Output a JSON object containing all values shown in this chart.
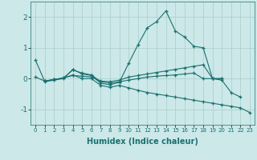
{
  "xlabel": "Humidex (Indice chaleur)",
  "background_color": "#cce8e8",
  "grid_color": "#aacccc",
  "line_color": "#1a7070",
  "xlim": [
    -0.5,
    23.5
  ],
  "ylim": [
    -1.5,
    2.5
  ],
  "yticks": [
    -1,
    0,
    1,
    2
  ],
  "xtick_labels": [
    "0",
    "1",
    "2",
    "3",
    "4",
    "5",
    "6",
    "7",
    "8",
    "9",
    "10",
    "11",
    "12",
    "13",
    "14",
    "15",
    "16",
    "17",
    "18",
    "19",
    "20",
    "21",
    "22",
    "23"
  ],
  "series": [
    {
      "x": [
        0,
        1,
        2,
        3,
        4,
        5,
        6,
        7,
        8,
        9,
        10,
        11,
        12,
        13,
        14,
        15,
        16,
        17,
        18,
        19,
        20,
        21,
        22
      ],
      "y": [
        0.6,
        -0.1,
        -0.05,
        0.0,
        0.3,
        0.15,
        0.1,
        -0.15,
        -0.2,
        -0.12,
        0.5,
        1.1,
        1.65,
        1.85,
        2.2,
        1.55,
        1.35,
        1.05,
        1.0,
        0.0,
        -0.05,
        -0.45,
        -0.6
      ]
    },
    {
      "x": [
        0,
        1,
        2,
        3,
        4,
        5,
        6,
        7,
        8,
        9,
        10,
        11,
        12,
        13,
        14,
        15,
        16,
        17,
        18,
        19,
        20
      ],
      "y": [
        0.05,
        -0.08,
        -0.03,
        0.02,
        0.1,
        0.08,
        0.05,
        -0.08,
        -0.1,
        -0.05,
        0.05,
        0.1,
        0.15,
        0.2,
        0.25,
        0.3,
        0.35,
        0.4,
        0.45,
        0.0,
        0.0
      ]
    },
    {
      "x": [
        1,
        2,
        3,
        4,
        5,
        6,
        7,
        8,
        9,
        10,
        11,
        12,
        13,
        14,
        15,
        16,
        17,
        18,
        19,
        20,
        21,
        22,
        23
      ],
      "y": [
        -0.08,
        -0.03,
        0.02,
        0.12,
        0.0,
        0.0,
        -0.22,
        -0.28,
        -0.22,
        -0.3,
        -0.38,
        -0.45,
        -0.5,
        -0.55,
        -0.6,
        -0.65,
        -0.7,
        -0.75,
        -0.8,
        -0.85,
        -0.9,
        -0.95,
        -1.1
      ]
    },
    {
      "x": [
        1,
        2,
        3,
        4,
        5,
        6,
        7,
        8,
        9,
        10,
        11,
        12,
        13,
        14,
        15,
        16,
        17,
        18,
        19,
        20
      ],
      "y": [
        -0.08,
        -0.03,
        0.02,
        0.28,
        0.18,
        0.12,
        -0.1,
        -0.15,
        -0.1,
        -0.05,
        0.0,
        0.05,
        0.08,
        0.1,
        0.12,
        0.15,
        0.18,
        0.0,
        0.0,
        0.0
      ]
    }
  ]
}
